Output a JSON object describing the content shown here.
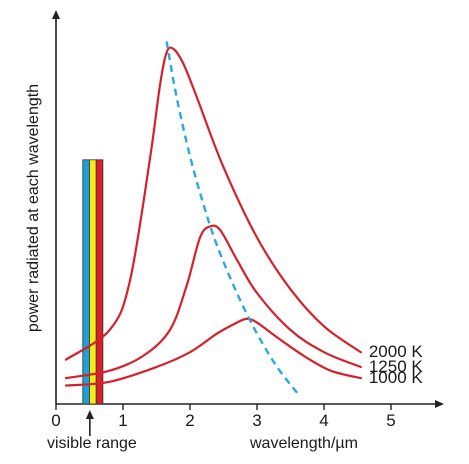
{
  "chart_data": {
    "type": "line",
    "xlabel": "wavelength/µm",
    "ylabel": "power radiated at each wavelength",
    "x_ticks": [
      "0",
      "1",
      "2",
      "3",
      "4",
      "5"
    ],
    "xlim": [
      0,
      5.6
    ],
    "ylim": [
      0,
      1.0
    ],
    "y_ticks_shown": false,
    "grid": false,
    "series": [
      {
        "name": "2000 K",
        "color": "#d6202a",
        "x": [
          0.15,
          0.8,
          1.1,
          1.4,
          1.55,
          1.65,
          1.75,
          1.9,
          2.1,
          2.5,
          3.0,
          3.5,
          4.0,
          4.55
        ],
        "y": [
          0.12,
          0.2,
          0.33,
          0.66,
          0.86,
          0.95,
          0.96,
          0.92,
          0.83,
          0.64,
          0.45,
          0.31,
          0.21,
          0.14
        ]
      },
      {
        "name": "1250 K",
        "color": "#d6202a",
        "x": [
          0.15,
          0.8,
          1.3,
          1.7,
          1.95,
          2.15,
          2.3,
          2.45,
          2.7,
          3.0,
          3.5,
          4.0,
          4.55
        ],
        "y": [
          0.07,
          0.09,
          0.13,
          0.2,
          0.32,
          0.45,
          0.48,
          0.47,
          0.39,
          0.3,
          0.2,
          0.14,
          0.1
        ]
      },
      {
        "name": "1000 K",
        "color": "#d6202a",
        "x": [
          0.15,
          0.8,
          1.5,
          2.0,
          2.4,
          2.7,
          2.85,
          3.0,
          3.3,
          3.7,
          4.1,
          4.55
        ],
        "y": [
          0.05,
          0.06,
          0.1,
          0.14,
          0.19,
          0.22,
          0.23,
          0.22,
          0.18,
          0.13,
          0.09,
          0.07
        ]
      }
    ],
    "peak_trend": {
      "style": "dashed",
      "color": "#29a9df",
      "x": [
        1.65,
        1.8,
        2.0,
        2.2,
        2.4,
        2.7,
        3.0,
        3.3,
        3.6
      ],
      "y": [
        0.98,
        0.83,
        0.67,
        0.54,
        0.43,
        0.3,
        0.19,
        0.1,
        0.03
      ]
    },
    "visible_band": {
      "x_start": 0.4,
      "x_end": 0.7,
      "height": 0.66,
      "colors": [
        "#1da1dc",
        "#f6eb14",
        "#d6202a"
      ],
      "label": "visible range"
    }
  }
}
